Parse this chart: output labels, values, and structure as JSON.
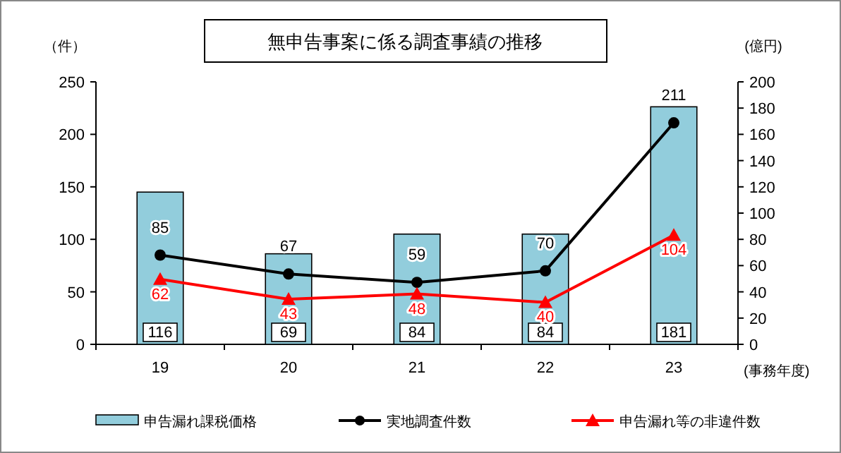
{
  "chart_data": {
    "type": "bar",
    "title": "無申告事案に係る調査事績の推移",
    "categories": [
      "19",
      "20",
      "21",
      "22",
      "23"
    ],
    "xlabel": "(事務年度)",
    "ylabel": "（件）",
    "y2label": "(億円)",
    "ylim": [
      0,
      250
    ],
    "yticks": [
      0,
      50,
      100,
      150,
      200,
      250
    ],
    "y2lim": [
      0,
      200
    ],
    "y2ticks": [
      0,
      20,
      40,
      60,
      80,
      100,
      120,
      140,
      160,
      180,
      200
    ],
    "grid": false,
    "legend": "bottom",
    "data_labels": true,
    "series": [
      {
        "name": "申告漏れ課税価格",
        "axis": "y2",
        "color": "#92cddc",
        "values": [
          116,
          69,
          84,
          84,
          181
        ]
      },
      {
        "name": "実地調査件数",
        "type": "line",
        "color": "#000000",
        "marker": "circle",
        "values": [
          85,
          67,
          59,
          70,
          211
        ]
      },
      {
        "name": "申告漏れ等の非違件数",
        "type": "line",
        "color": "#ff0000",
        "marker": "triangle",
        "values": [
          62,
          43,
          48,
          40,
          104
        ]
      }
    ]
  }
}
